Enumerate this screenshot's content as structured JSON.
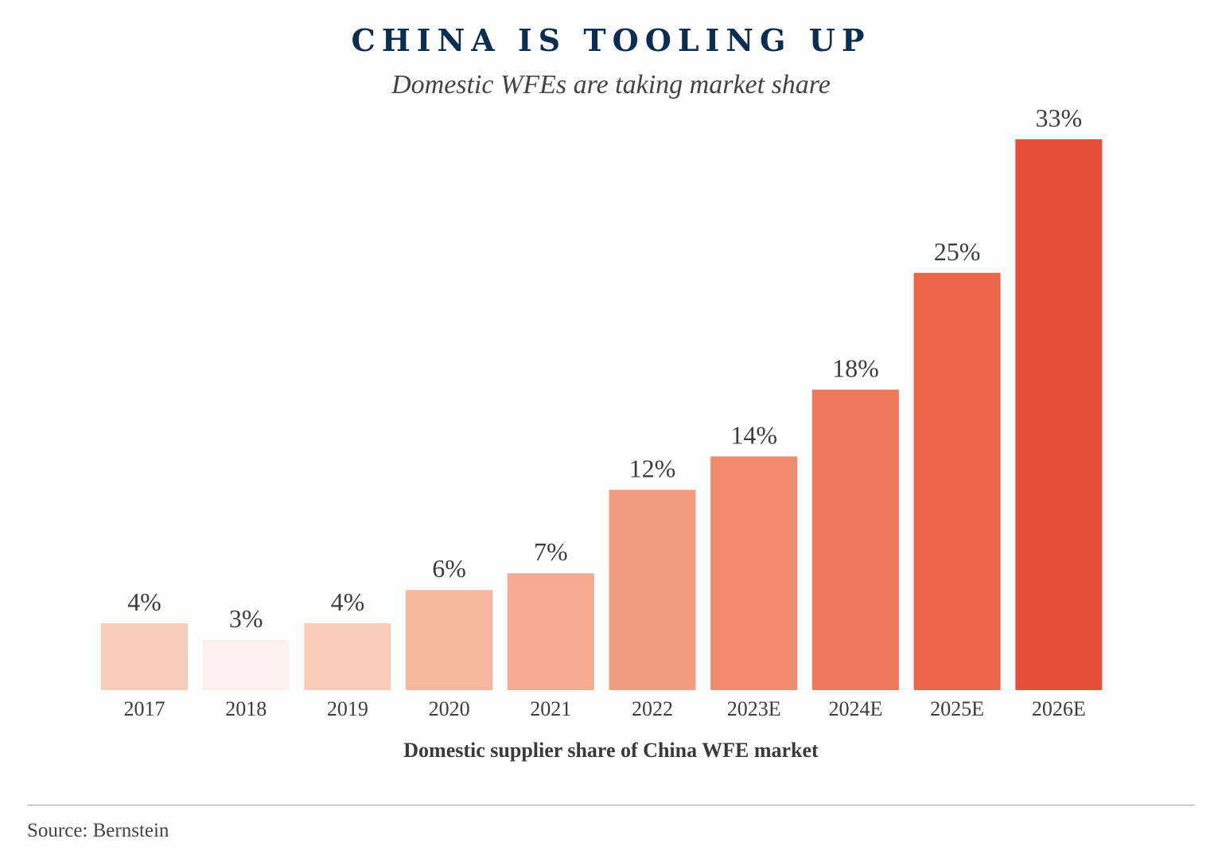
{
  "chart_data": {
    "type": "bar",
    "title": "CHINA IS TOOLING UP",
    "subtitle": "Domestic WFEs are taking market share",
    "xlabel": "Domestic supplier share of China WFE market",
    "ylabel": "",
    "categories": [
      "2017",
      "2018",
      "2019",
      "2020",
      "2021",
      "2022",
      "2023E",
      "2024E",
      "2025E",
      "2026E"
    ],
    "values": [
      4,
      3,
      4,
      6,
      7,
      12,
      14,
      18,
      25,
      33
    ],
    "value_labels": [
      "4%",
      "3%",
      "4%",
      "6%",
      "7%",
      "12%",
      "14%",
      "18%",
      "25%",
      "33%"
    ],
    "value_unit": "%",
    "colors": [
      "#f9cbb9",
      "#fdefeb",
      "#f9cbb9",
      "#f5b59f",
      "#f4a990",
      "#f29b7f",
      "#f08a6e",
      "#ef775c",
      "#eb644b",
      "#e84f3a"
    ],
    "ylim": [
      0,
      33
    ],
    "grid": false,
    "legend": "none"
  },
  "footer": {
    "source": "Source: Bernstein"
  }
}
